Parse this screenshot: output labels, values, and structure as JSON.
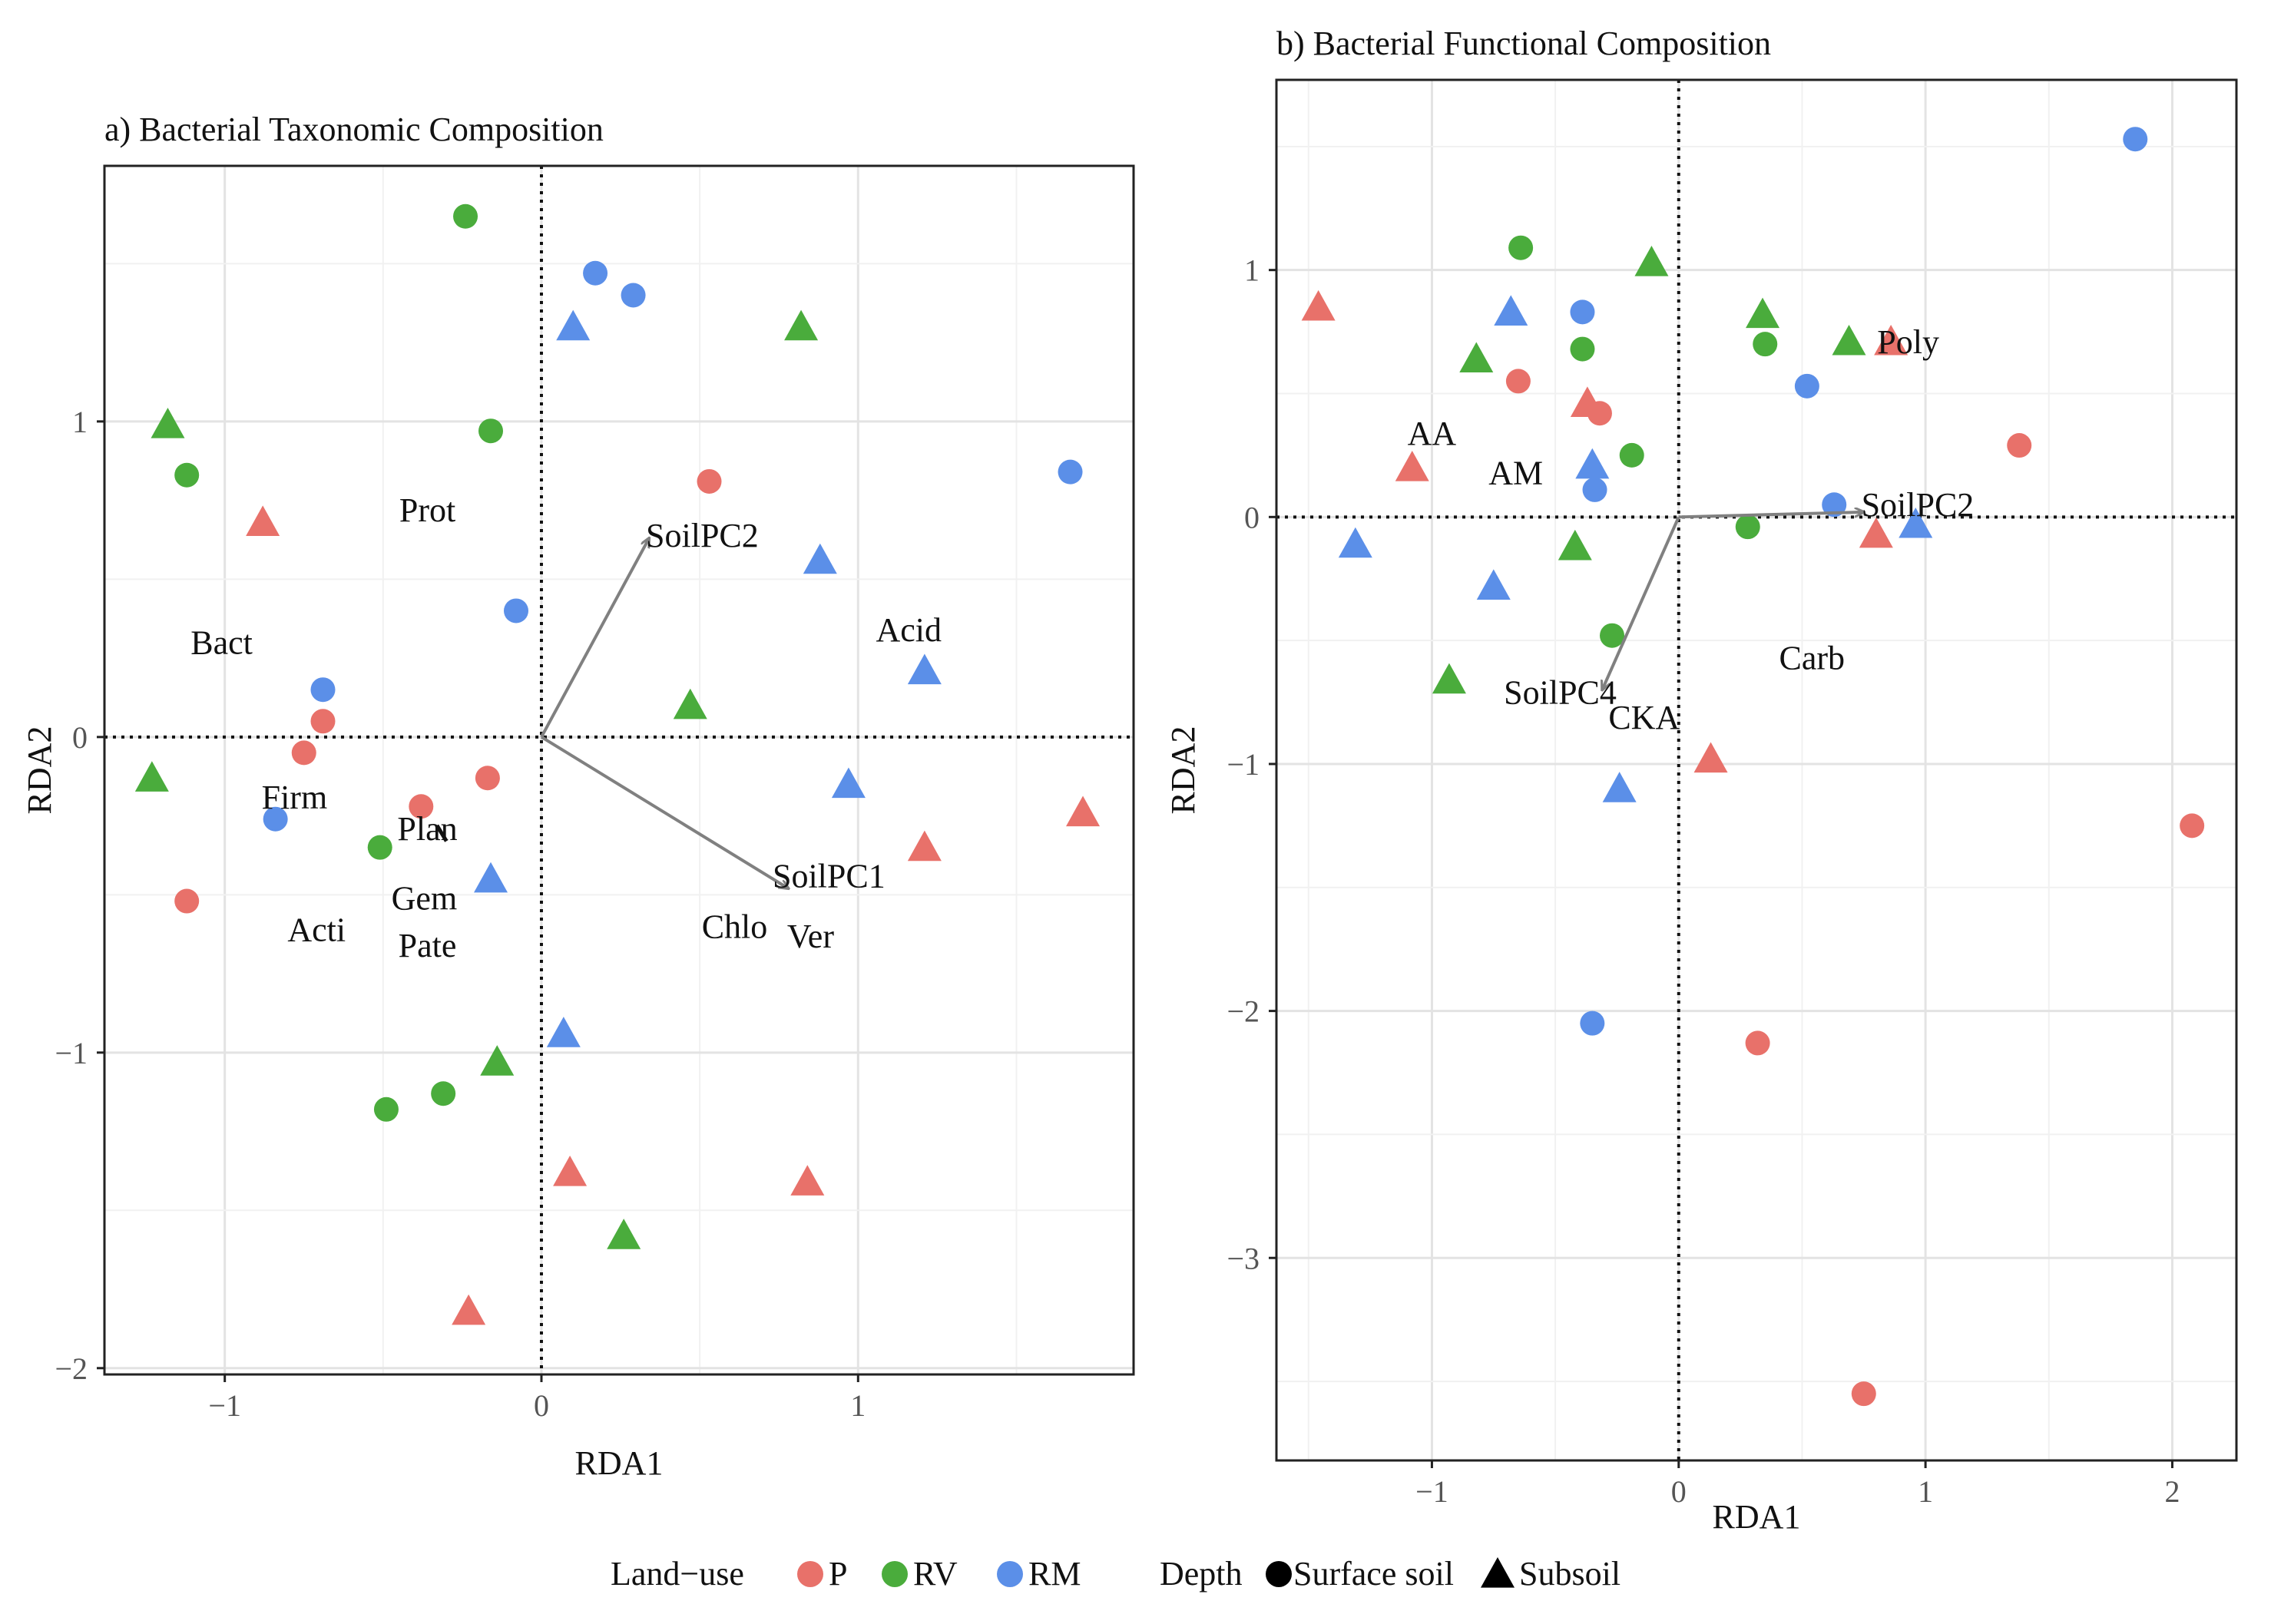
{
  "colors": {
    "P": "#e8716a",
    "RV": "#4aac3c",
    "RM": "#5b8fe8",
    "arrow": "#808080"
  },
  "legend": {
    "landuse_title": "Land−use",
    "landuse_items": [
      {
        "key": "P",
        "label": "P"
      },
      {
        "key": "RV",
        "label": "RV"
      },
      {
        "key": "RM",
        "label": "RM"
      }
    ],
    "depth_title": "Depth",
    "depth_items": [
      {
        "shape": "circle",
        "label": "Surface soil"
      },
      {
        "shape": "triangle",
        "label": "Subsoil"
      }
    ]
  },
  "chart_data": [
    {
      "type": "scatter",
      "title": "a) Bacterial Taxonomic Composition",
      "xlabel": "RDA1",
      "ylabel": "RDA2",
      "xlim": [
        -1.38,
        1.87
      ],
      "ylim": [
        -2.02,
        1.81
      ],
      "xticks": [
        -1,
        0,
        1
      ],
      "xticklabels": [
        "−1",
        "0",
        "1"
      ],
      "yticks": [
        -2,
        -1,
        0,
        1
      ],
      "yticklabels": [
        "−2",
        "−1",
        "0",
        "1"
      ],
      "points": [
        {
          "x": -0.24,
          "y": 1.65,
          "group": "RV",
          "shape": "circle"
        },
        {
          "x": 0.17,
          "y": 1.47,
          "group": "RM",
          "shape": "circle"
        },
        {
          "x": 0.29,
          "y": 1.4,
          "group": "RM",
          "shape": "circle"
        },
        {
          "x": 0.1,
          "y": 1.3,
          "group": "RM",
          "shape": "triangle"
        },
        {
          "x": 0.82,
          "y": 1.3,
          "group": "RV",
          "shape": "triangle"
        },
        {
          "x": -1.18,
          "y": 0.99,
          "group": "RV",
          "shape": "triangle"
        },
        {
          "x": -0.16,
          "y": 0.97,
          "group": "RV",
          "shape": "circle"
        },
        {
          "x": -1.12,
          "y": 0.83,
          "group": "RV",
          "shape": "circle"
        },
        {
          "x": 1.67,
          "y": 0.84,
          "group": "RM",
          "shape": "circle"
        },
        {
          "x": 0.53,
          "y": 0.81,
          "group": "P",
          "shape": "circle"
        },
        {
          "x": -0.88,
          "y": 0.68,
          "group": "P",
          "shape": "triangle"
        },
        {
          "x": 0.88,
          "y": 0.56,
          "group": "RM",
          "shape": "triangle"
        },
        {
          "x": -0.08,
          "y": 0.4,
          "group": "RM",
          "shape": "circle"
        },
        {
          "x": 1.21,
          "y": 0.21,
          "group": "RM",
          "shape": "triangle"
        },
        {
          "x": -0.69,
          "y": 0.15,
          "group": "RM",
          "shape": "circle"
        },
        {
          "x": 0.47,
          "y": 0.1,
          "group": "RV",
          "shape": "triangle"
        },
        {
          "x": -0.69,
          "y": 0.05,
          "group": "P",
          "shape": "circle"
        },
        {
          "x": -0.75,
          "y": -0.05,
          "group": "P",
          "shape": "circle"
        },
        {
          "x": -1.23,
          "y": -0.13,
          "group": "RV",
          "shape": "triangle"
        },
        {
          "x": -0.17,
          "y": -0.13,
          "group": "P",
          "shape": "circle"
        },
        {
          "x": 0.97,
          "y": -0.15,
          "group": "RM",
          "shape": "triangle"
        },
        {
          "x": -0.38,
          "y": -0.22,
          "group": "P",
          "shape": "circle"
        },
        {
          "x": -0.84,
          "y": -0.26,
          "group": "RM",
          "shape": "circle"
        },
        {
          "x": 1.71,
          "y": -0.24,
          "group": "P",
          "shape": "triangle"
        },
        {
          "x": -0.51,
          "y": -0.35,
          "group": "RV",
          "shape": "circle"
        },
        {
          "x": 1.21,
          "y": -0.35,
          "group": "P",
          "shape": "triangle"
        },
        {
          "x": -0.16,
          "y": -0.45,
          "group": "RM",
          "shape": "triangle"
        },
        {
          "x": -1.12,
          "y": -0.52,
          "group": "P",
          "shape": "circle"
        },
        {
          "x": 0.07,
          "y": -0.94,
          "group": "RM",
          "shape": "triangle"
        },
        {
          "x": -0.14,
          "y": -1.03,
          "group": "RV",
          "shape": "triangle"
        },
        {
          "x": -0.31,
          "y": -1.13,
          "group": "RV",
          "shape": "circle"
        },
        {
          "x": -0.49,
          "y": -1.18,
          "group": "RV",
          "shape": "circle"
        },
        {
          "x": 0.09,
          "y": -1.38,
          "group": "P",
          "shape": "triangle"
        },
        {
          "x": 0.84,
          "y": -1.41,
          "group": "P",
          "shape": "triangle"
        },
        {
          "x": 0.26,
          "y": -1.58,
          "group": "RV",
          "shape": "triangle"
        },
        {
          "x": -0.23,
          "y": -1.82,
          "group": "P",
          "shape": "triangle"
        }
      ],
      "arrows": [
        {
          "label": "SoilPC2",
          "x": 0.34,
          "y": 0.63,
          "label_x": 0.33,
          "label_y": 0.64,
          "anchor": "start"
        },
        {
          "label": "SoilPC1",
          "x": 0.78,
          "y": -0.48,
          "label_x": 0.73,
          "label_y": -0.44,
          "anchor": "start"
        }
      ],
      "labels": [
        {
          "text": "Prot",
          "x": -0.36,
          "y": 0.72
        },
        {
          "text": "Acid",
          "x": 1.16,
          "y": 0.34
        },
        {
          "text": "Bact",
          "x": -1.01,
          "y": 0.3
        },
        {
          "text": "Firm",
          "x": -0.78,
          "y": -0.19
        },
        {
          "text": "Plan",
          "x": -0.36,
          "y": -0.29
        },
        {
          "text": "Gem",
          "x": -0.37,
          "y": -0.51
        },
        {
          "text": "Chlo",
          "x": 0.61,
          "y": -0.6
        },
        {
          "text": "Ver",
          "x": 0.85,
          "y": -0.63
        },
        {
          "text": "Acti",
          "x": -0.71,
          "y": -0.61
        },
        {
          "text": "Pate",
          "x": -0.36,
          "y": -0.66
        }
      ],
      "extra_segments": [
        {
          "x1": -0.33,
          "y1": -0.28,
          "x2": -0.3,
          "y2": -0.33
        }
      ]
    },
    {
      "type": "scatter",
      "title": "b) Bacterial Functional Composition",
      "xlabel": "RDA1",
      "ylabel": "RDA2",
      "xlim": [
        -1.63,
        2.26
      ],
      "ylim": [
        -3.82,
        1.77
      ],
      "xticks": [
        -1,
        0,
        1,
        2
      ],
      "xticklabels": [
        "−1",
        "0",
        "1",
        "2"
      ],
      "yticks": [
        -3,
        -2,
        -1,
        0,
        1
      ],
      "yticklabels": [
        "−3",
        "−2",
        "−1",
        "0",
        "1"
      ],
      "points": [
        {
          "x": 1.85,
          "y": 1.53,
          "group": "RM",
          "shape": "circle"
        },
        {
          "x": -0.64,
          "y": 1.09,
          "group": "RV",
          "shape": "circle"
        },
        {
          "x": -0.11,
          "y": 1.03,
          "group": "RV",
          "shape": "triangle"
        },
        {
          "x": -1.46,
          "y": 0.85,
          "group": "P",
          "shape": "triangle"
        },
        {
          "x": -0.68,
          "y": 0.83,
          "group": "RM",
          "shape": "triangle"
        },
        {
          "x": -0.39,
          "y": 0.83,
          "group": "RM",
          "shape": "circle"
        },
        {
          "x": 0.34,
          "y": 0.82,
          "group": "RV",
          "shape": "triangle"
        },
        {
          "x": 0.69,
          "y": 0.71,
          "group": "RV",
          "shape": "triangle"
        },
        {
          "x": 0.86,
          "y": 0.71,
          "group": "P",
          "shape": "triangle"
        },
        {
          "x": -0.39,
          "y": 0.68,
          "group": "RV",
          "shape": "circle"
        },
        {
          "x": 0.35,
          "y": 0.7,
          "group": "RV",
          "shape": "circle"
        },
        {
          "x": -0.82,
          "y": 0.64,
          "group": "RV",
          "shape": "triangle"
        },
        {
          "x": -0.65,
          "y": 0.55,
          "group": "P",
          "shape": "circle"
        },
        {
          "x": 0.52,
          "y": 0.53,
          "group": "RM",
          "shape": "circle"
        },
        {
          "x": -0.37,
          "y": 0.46,
          "group": "P",
          "shape": "triangle"
        },
        {
          "x": -0.32,
          "y": 0.42,
          "group": "P",
          "shape": "circle"
        },
        {
          "x": 1.38,
          "y": 0.29,
          "group": "P",
          "shape": "circle"
        },
        {
          "x": -1.08,
          "y": 0.2,
          "group": "P",
          "shape": "triangle"
        },
        {
          "x": -0.19,
          "y": 0.25,
          "group": "RV",
          "shape": "circle"
        },
        {
          "x": -0.35,
          "y": 0.21,
          "group": "RM",
          "shape": "triangle"
        },
        {
          "x": -0.34,
          "y": 0.11,
          "group": "RM",
          "shape": "circle"
        },
        {
          "x": 0.63,
          "y": 0.05,
          "group": "RM",
          "shape": "circle"
        },
        {
          "x": 0.28,
          "y": -0.04,
          "group": "RV",
          "shape": "circle"
        },
        {
          "x": 0.96,
          "y": -0.03,
          "group": "RM",
          "shape": "triangle"
        },
        {
          "x": 0.8,
          "y": -0.07,
          "group": "P",
          "shape": "triangle"
        },
        {
          "x": -1.31,
          "y": -0.11,
          "group": "RM",
          "shape": "triangle"
        },
        {
          "x": -0.42,
          "y": -0.12,
          "group": "RV",
          "shape": "triangle"
        },
        {
          "x": -0.75,
          "y": -0.28,
          "group": "RM",
          "shape": "triangle"
        },
        {
          "x": -0.27,
          "y": -0.48,
          "group": "RV",
          "shape": "circle"
        },
        {
          "x": -0.93,
          "y": -0.66,
          "group": "RV",
          "shape": "triangle"
        },
        {
          "x": 0.13,
          "y": -0.98,
          "group": "P",
          "shape": "triangle"
        },
        {
          "x": -0.24,
          "y": -1.1,
          "group": "RM",
          "shape": "triangle"
        },
        {
          "x": 2.08,
          "y": -1.25,
          "group": "P",
          "shape": "circle"
        },
        {
          "x": -0.35,
          "y": -2.05,
          "group": "RM",
          "shape": "circle"
        },
        {
          "x": 0.32,
          "y": -2.13,
          "group": "P",
          "shape": "circle"
        },
        {
          "x": 0.75,
          "y": -3.55,
          "group": "P",
          "shape": "circle"
        }
      ],
      "arrows": [
        {
          "label": "SoilPC2",
          "x": 0.75,
          "y": 0.02,
          "label_x": 0.74,
          "label_y": 0.05,
          "anchor": "start"
        },
        {
          "label": "SoilPC4",
          "x": -0.31,
          "y": -0.7,
          "label_x": -0.48,
          "label_y": -0.71,
          "anchor": "middle"
        }
      ],
      "labels": [
        {
          "text": "Poly",
          "x": 0.93,
          "y": 0.71
        },
        {
          "text": "AA",
          "x": -1.0,
          "y": 0.34
        },
        {
          "text": "AM",
          "x": -0.66,
          "y": 0.18
        },
        {
          "text": "Carb",
          "x": 0.54,
          "y": -0.57
        },
        {
          "text": "CKA",
          "x": -0.14,
          "y": -0.81
        }
      ],
      "extra_segments": []
    }
  ]
}
